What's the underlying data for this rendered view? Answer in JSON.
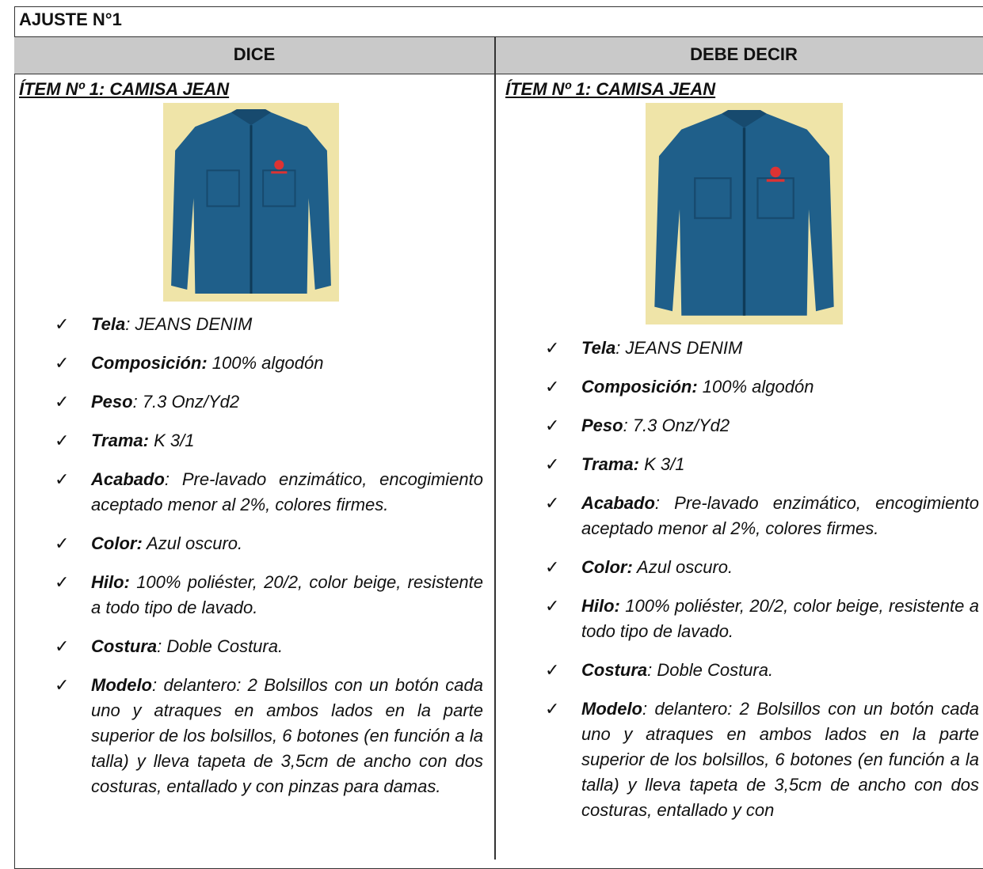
{
  "header": {
    "title": "AJUSTE N°1"
  },
  "columns": [
    {
      "heading": "DICE",
      "item_title": "ÍTEM Nº 1:  CAMISA JEAN",
      "specs": [
        {
          "label": "Tela",
          "value": ": JEANS DENIM"
        },
        {
          "label": "Composición:",
          "value": " 100% algodón"
        },
        {
          "label": "Peso",
          "value": ": 7.3 Onz/Yd2"
        },
        {
          "label": "Trama:",
          "value": " K 3/1"
        },
        {
          "label": "Acabado",
          "value": ": Pre-lavado enzimático, encogimiento aceptado menor al 2%, colores firmes."
        },
        {
          "label": "Color:",
          "value": " Azul oscuro."
        },
        {
          "label": "Hilo:",
          "value": " 100% poliéster, 20/2, color beige, resistente a todo tipo de lavado."
        },
        {
          "label": "Costura",
          "value": ": Doble Costura."
        },
        {
          "label": "Modelo",
          "value": ": delantero: 2 Bolsillos con un botón cada uno y atraques en ambos lados en la parte superior de los bolsillos, 6 botones (en función a la talla) y lleva tapeta de 3,5cm de ancho con dos costuras, entallado y con pinzas para damas."
        }
      ]
    },
    {
      "heading": "DEBE DECIR",
      "item_title": "ÍTEM Nº 1:  CAMISA JEAN",
      "specs": [
        {
          "label": "Tela",
          "value": ": JEANS DENIM"
        },
        {
          "label": "Composición:",
          "value": " 100% algodón"
        },
        {
          "label": "Peso",
          "value": ": 7.3 Onz/Yd2"
        },
        {
          "label": "Trama:",
          "value": " K 3/1"
        },
        {
          "label": "Acabado",
          "value": ": Pre-lavado enzimático, encogimiento aceptado menor al 2%, colores firmes."
        },
        {
          "label": "Color:",
          "value": " Azul oscuro."
        },
        {
          "label": "Hilo:",
          "value": " 100% poliéster, 20/2, color beige, resistente a todo tipo de lavado."
        },
        {
          "label": "Costura",
          "value": ": Doble Costura."
        },
        {
          "label": "Modelo",
          "value": ": delantero: 2 Bolsillos con un botón cada uno y atraques en ambos lados en la parte superior de los bolsillos, 6 botones (en función a la talla) y lleva tapeta de 3,5cm de ancho con dos costuras, entallado y con"
        }
      ]
    }
  ]
}
